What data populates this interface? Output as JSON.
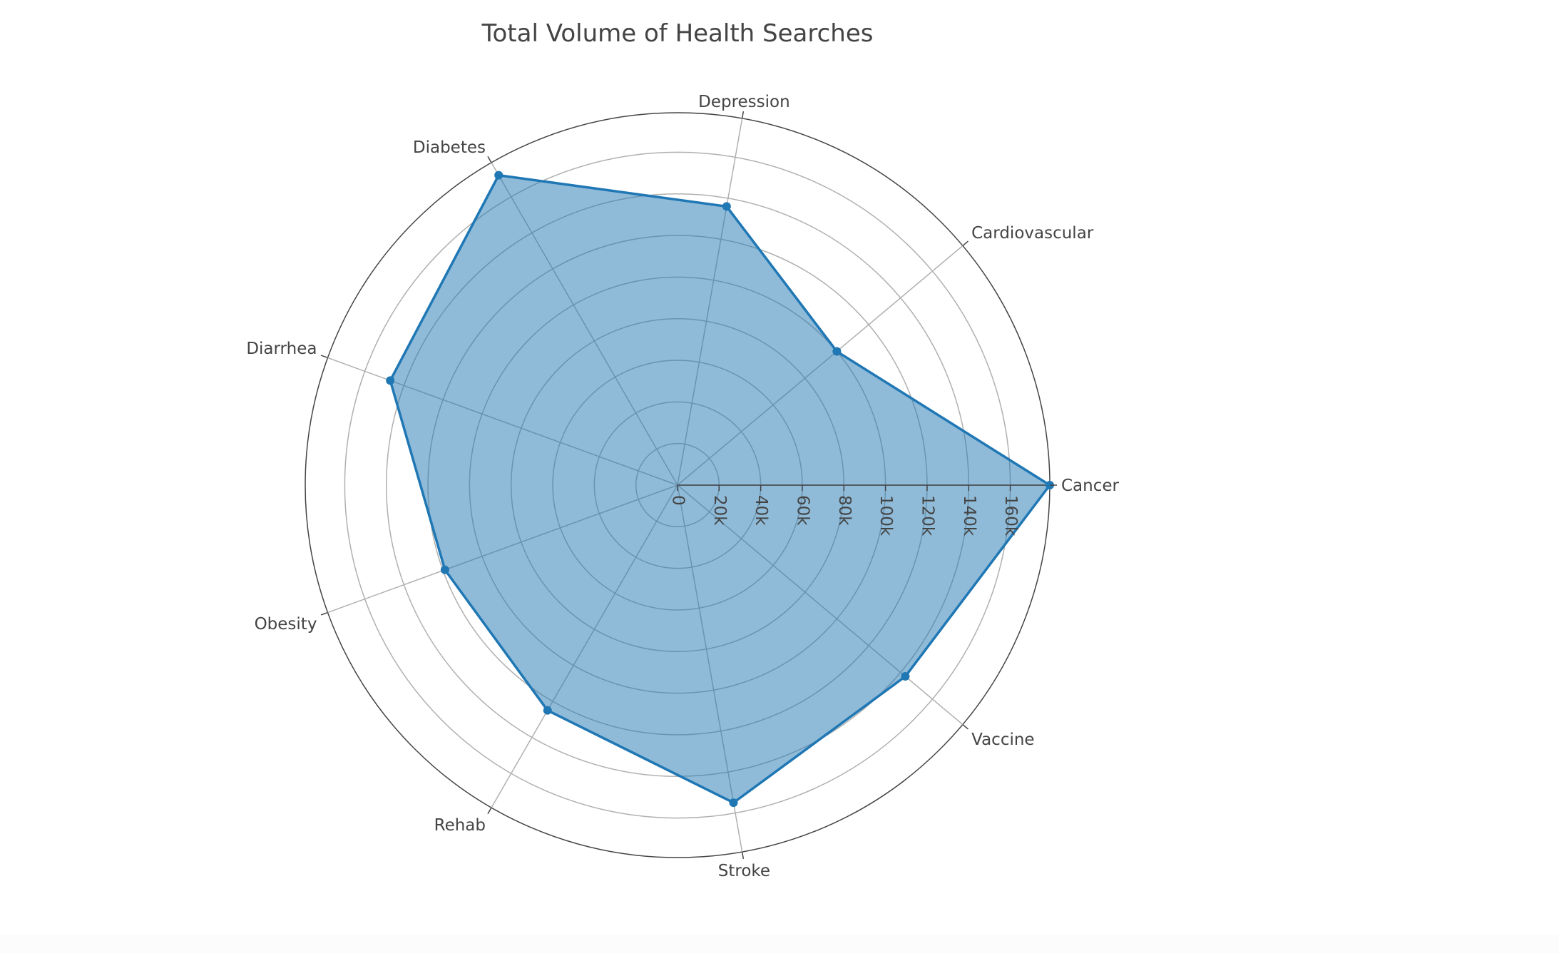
{
  "chart_data": {
    "type": "radar",
    "title": "Total Volume of Health Searches",
    "categories": [
      "Cancer",
      "Cardiovascular",
      "Depression",
      "Diabetes",
      "Diarrhea",
      "Obesity",
      "Rehab",
      "Stroke",
      "Vaccine"
    ],
    "series": [
      {
        "values": [
          179000,
          100000,
          136000,
          172000,
          147000,
          119000,
          125000,
          155000,
          143000
        ],
        "color": "#1f77b4",
        "fill": "toself"
      }
    ],
    "radial_axis": {
      "range": [
        0,
        179000
      ],
      "tickvals": [
        0,
        20000,
        40000,
        60000,
        80000,
        100000,
        120000,
        140000,
        160000
      ],
      "ticktext": [
        "0",
        "20k",
        "40k",
        "60k",
        "80k",
        "100k",
        "120k",
        "140k",
        "160k"
      ]
    },
    "grid": true,
    "legend": "none"
  }
}
